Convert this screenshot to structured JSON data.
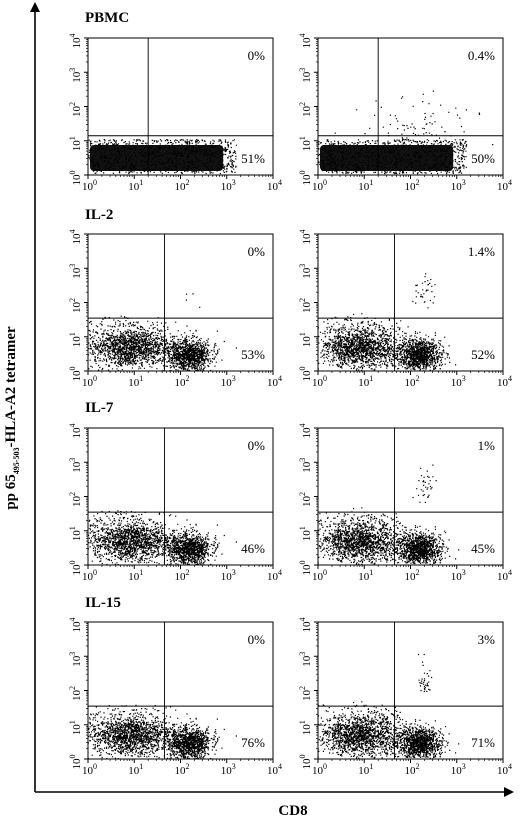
{
  "figure": {
    "ylabel_main": "pp 65",
    "ylabel_sub": "495-503",
    "ylabel_rest": "-HLA-A2 tetramer",
    "xlabel": "CD8"
  },
  "chart_data": [
    {
      "type": "scatter",
      "row_label": "PBMC",
      "x_axis": "CD8",
      "y_axis": "pp65 495-503 HLA-A2 tetramer",
      "scale": "log",
      "xlim": [
        1,
        10000
      ],
      "ylim": [
        1,
        10000
      ],
      "x_ticks": [
        "10",
        "10",
        "10",
        "10",
        "10"
      ],
      "x_tick_exp": [
        "0",
        "1",
        "2",
        "3",
        "4"
      ],
      "y_ticks": [
        "10",
        "10",
        "10",
        "10",
        "10"
      ],
      "y_tick_exp": [
        "0",
        "1",
        "2",
        "3",
        "4"
      ],
      "quadrant_ul": "0%",
      "quadrant_lr": "51%",
      "gate_x": 20,
      "gate_y": 14
    },
    {
      "type": "scatter",
      "row_label": "",
      "x_axis": "CD8",
      "y_axis": "pp65 495-503 HLA-A2 tetramer",
      "scale": "log",
      "xlim": [
        1,
        10000
      ],
      "ylim": [
        1,
        10000
      ],
      "x_ticks": [
        "10",
        "10",
        "10",
        "10",
        "10"
      ],
      "x_tick_exp": [
        "0",
        "1",
        "2",
        "3",
        "4"
      ],
      "y_ticks": [
        "10",
        "10",
        "10",
        "10",
        "10"
      ],
      "y_tick_exp": [
        "0",
        "1",
        "2",
        "3",
        "4"
      ],
      "quadrant_ul": "0.4%",
      "quadrant_lr": "50%",
      "gate_x": 20,
      "gate_y": 14
    },
    {
      "type": "scatter",
      "row_label": "IL-2",
      "x_axis": "CD8",
      "y_axis": "pp65 495-503 HLA-A2 tetramer",
      "scale": "log",
      "xlim": [
        1,
        10000
      ],
      "ylim": [
        1,
        10000
      ],
      "x_ticks": [
        "10",
        "10",
        "10",
        "10",
        "10"
      ],
      "x_tick_exp": [
        "0",
        "1",
        "2",
        "3",
        "4"
      ],
      "y_ticks": [
        "10",
        "10",
        "10",
        "10",
        "10"
      ],
      "y_tick_exp": [
        "0",
        "1",
        "2",
        "3",
        "4"
      ],
      "quadrant_ul": "0%",
      "quadrant_lr": "53%",
      "gate_x": 45,
      "gate_y": 35
    },
    {
      "type": "scatter",
      "row_label": "",
      "x_axis": "CD8",
      "y_axis": "pp65 495-503 HLA-A2 tetramer",
      "scale": "log",
      "xlim": [
        1,
        10000
      ],
      "ylim": [
        1,
        10000
      ],
      "x_ticks": [
        "10",
        "10",
        "10",
        "10",
        "10"
      ],
      "x_tick_exp": [
        "0",
        "1",
        "2",
        "3",
        "4"
      ],
      "y_ticks": [
        "10",
        "10",
        "10",
        "10",
        "10"
      ],
      "y_tick_exp": [
        "0",
        "1",
        "2",
        "3",
        "4"
      ],
      "quadrant_ul": "1.4%",
      "quadrant_lr": "52%",
      "gate_x": 45,
      "gate_y": 35
    },
    {
      "type": "scatter",
      "row_label": "IL-7",
      "x_axis": "CD8",
      "y_axis": "pp65 495-503 HLA-A2 tetramer",
      "scale": "log",
      "xlim": [
        1,
        10000
      ],
      "ylim": [
        1,
        10000
      ],
      "x_ticks": [
        "10",
        "10",
        "10",
        "10",
        "10"
      ],
      "x_tick_exp": [
        "0",
        "1",
        "2",
        "3",
        "4"
      ],
      "y_ticks": [
        "10",
        "10",
        "10",
        "10",
        "10"
      ],
      "y_tick_exp": [
        "0",
        "1",
        "2",
        "3",
        "4"
      ],
      "quadrant_ul": "0%",
      "quadrant_lr": "46%",
      "gate_x": 45,
      "gate_y": 35
    },
    {
      "type": "scatter",
      "row_label": "",
      "x_axis": "CD8",
      "y_axis": "pp65 495-503 HLA-A2 tetramer",
      "scale": "log",
      "xlim": [
        1,
        10000
      ],
      "ylim": [
        1,
        10000
      ],
      "x_ticks": [
        "10",
        "10",
        "10",
        "10",
        "10"
      ],
      "x_tick_exp": [
        "0",
        "1",
        "2",
        "3",
        "4"
      ],
      "y_ticks": [
        "10",
        "10",
        "10",
        "10",
        "10"
      ],
      "y_tick_exp": [
        "0",
        "1",
        "2",
        "3",
        "4"
      ],
      "quadrant_ul": "1%",
      "quadrant_lr": "45%",
      "gate_x": 45,
      "gate_y": 35
    },
    {
      "type": "scatter",
      "row_label": "IL-15",
      "x_axis": "CD8",
      "y_axis": "pp65 495-503 HLA-A2 tetramer",
      "scale": "log",
      "xlim": [
        1,
        10000
      ],
      "ylim": [
        1,
        10000
      ],
      "x_ticks": [
        "10",
        "10",
        "10",
        "10",
        "10"
      ],
      "x_tick_exp": [
        "0",
        "1",
        "2",
        "3",
        "4"
      ],
      "y_ticks": [
        "10",
        "10",
        "10",
        "10",
        "10"
      ],
      "y_tick_exp": [
        "0",
        "1",
        "2",
        "3",
        "4"
      ],
      "quadrant_ul": "0%",
      "quadrant_lr": "76%",
      "gate_x": 45,
      "gate_y": 35
    },
    {
      "type": "scatter",
      "row_label": "",
      "x_axis": "CD8",
      "y_axis": "pp65 495-503 HLA-A2 tetramer",
      "scale": "log",
      "xlim": [
        1,
        10000
      ],
      "ylim": [
        1,
        10000
      ],
      "x_ticks": [
        "10",
        "10",
        "10",
        "10",
        "10"
      ],
      "x_tick_exp": [
        "0",
        "1",
        "2",
        "3",
        "4"
      ],
      "y_ticks": [
        "10",
        "10",
        "10",
        "10",
        "10"
      ],
      "y_tick_exp": [
        "0",
        "1",
        "2",
        "3",
        "4"
      ],
      "quadrant_ul": "3%",
      "quadrant_lr": "71%",
      "gate_x": 45,
      "gate_y": 35
    }
  ]
}
